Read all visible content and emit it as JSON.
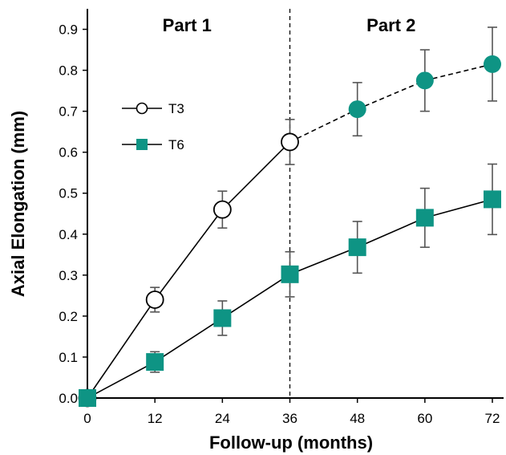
{
  "chart_data": {
    "type": "line",
    "xlabel": "Follow-up (months)",
    "ylabel": "Axial Elongation (mm)",
    "xlim": [
      0,
      72
    ],
    "ylim": [
      0,
      0.95
    ],
    "xticks": [
      "0",
      "12",
      "24",
      "36",
      "48",
      "60",
      "72"
    ],
    "yticks": [
      "0.0",
      "0.1",
      "0.2",
      "0.3",
      "0.4",
      "0.5",
      "0.6",
      "0.7",
      "0.8",
      "0.9"
    ],
    "divider_x": 36,
    "annotations": [
      {
        "text": "Part 1",
        "x": 18
      },
      {
        "text": "Part 2",
        "x": 54
      }
    ],
    "legend_position": "left",
    "series": [
      {
        "name": "T3",
        "color": "#000000",
        "fill_part1": "#ffffff",
        "fill_part2": "#0e9484",
        "marker": "circle",
        "x": [
          0,
          12,
          24,
          36,
          48,
          60,
          72
        ],
        "y": [
          0.0,
          0.24,
          0.46,
          0.625,
          0.705,
          0.775,
          0.815
        ],
        "err": [
          0,
          0.03,
          0.045,
          0.055,
          0.065,
          0.075,
          0.09
        ]
      },
      {
        "name": "T6",
        "color": "#000000",
        "fill_part1": "#0e9484",
        "fill_part2": "#0e9484",
        "marker": "square",
        "x": [
          0,
          12,
          24,
          36,
          48,
          60,
          72
        ],
        "y": [
          0.0,
          0.088,
          0.195,
          0.302,
          0.368,
          0.44,
          0.485
        ],
        "err": [
          0,
          0.025,
          0.042,
          0.055,
          0.063,
          0.072,
          0.086
        ]
      }
    ]
  }
}
